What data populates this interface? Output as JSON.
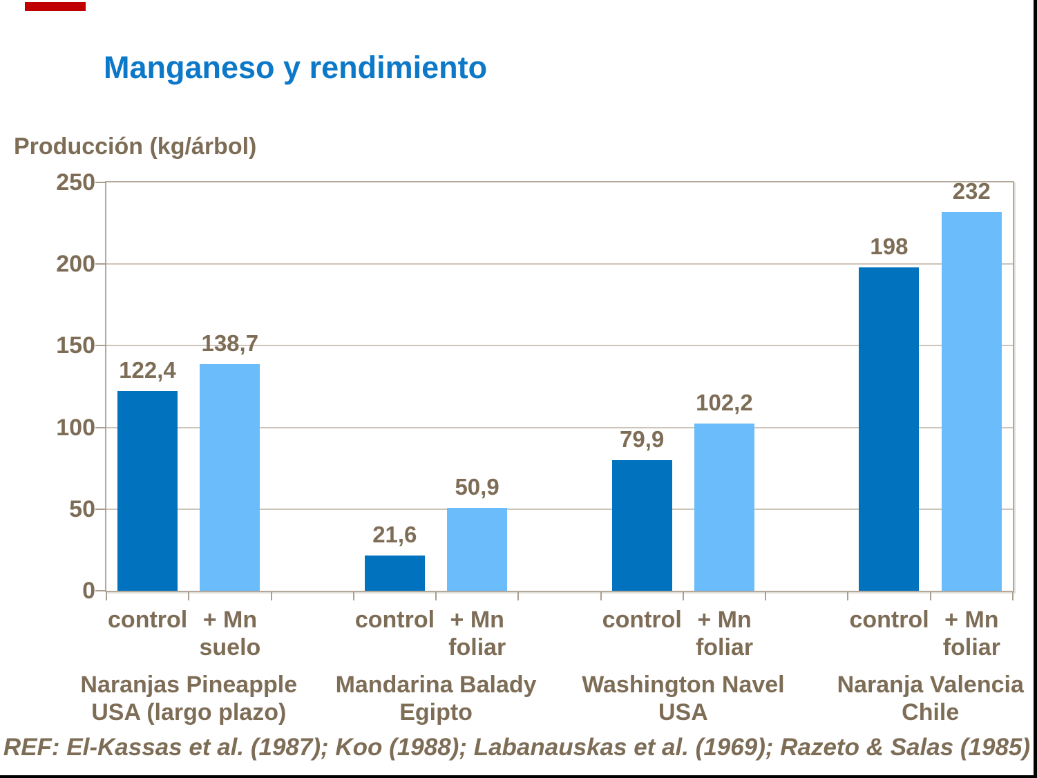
{
  "page": {
    "background": "#ffffff",
    "frame_color": "#000000",
    "marker_color": "#c00000"
  },
  "chart_data": {
    "type": "bar",
    "title": "Manganeso y rendimiento",
    "ylabel": "Producción (kg/árbol)",
    "ylim": [
      0,
      250
    ],
    "yticks": [
      0,
      50,
      100,
      150,
      200,
      250
    ],
    "grid": true,
    "legend_position": "none",
    "colors": {
      "control_bar": "#0072be",
      "treatment_bar": "#6bbcfa",
      "title_text": "#0c78c8",
      "label_text": "#7e6d56",
      "gridline": "#ccc4b8",
      "plot_border": "#b3a899"
    },
    "groups": [
      {
        "name_lines": [
          "Naranjas Pineapple",
          "USA (largo plazo)"
        ],
        "bars": [
          {
            "label_lines": [
              "control"
            ],
            "value": 122.4,
            "value_label": "122,4",
            "series": "control"
          },
          {
            "label_lines": [
              "+ Mn",
              "suelo"
            ],
            "value": 138.7,
            "value_label": "138,7",
            "series": "treatment"
          }
        ]
      },
      {
        "name_lines": [
          "Mandarina Balady",
          "Egipto"
        ],
        "bars": [
          {
            "label_lines": [
              "control"
            ],
            "value": 21.6,
            "value_label": "21,6",
            "series": "control"
          },
          {
            "label_lines": [
              "+ Mn",
              "foliar"
            ],
            "value": 50.9,
            "value_label": "50,9",
            "series": "treatment"
          }
        ]
      },
      {
        "name_lines": [
          "Washington Navel",
          "USA"
        ],
        "bars": [
          {
            "label_lines": [
              "control"
            ],
            "value": 79.9,
            "value_label": "79,9",
            "series": "control"
          },
          {
            "label_lines": [
              "+ Mn",
              "foliar"
            ],
            "value": 102.2,
            "value_label": "102,2",
            "series": "treatment"
          }
        ]
      },
      {
        "name_lines": [
          "Naranja Valencia",
          "Chile"
        ],
        "bars": [
          {
            "label_lines": [
              "control"
            ],
            "value": 198,
            "value_label": "198",
            "series": "control"
          },
          {
            "label_lines": [
              "+ Mn",
              "foliar"
            ],
            "value": 232,
            "value_label": "232",
            "series": "treatment"
          }
        ]
      }
    ],
    "footnote": "REF: El-Kassas et al. (1987); Koo (1988); Labanauskas et al. (1969); Razeto & Salas (1985)"
  }
}
